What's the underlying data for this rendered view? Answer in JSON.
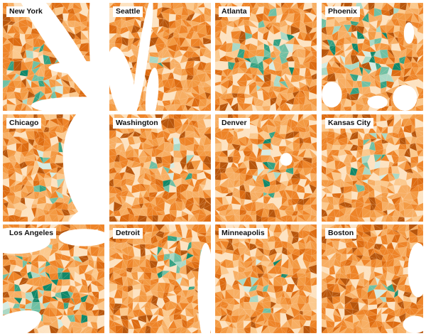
{
  "colors": {
    "background": "#ffffff",
    "water": "#ffffff",
    "orange_scale": [
      "#fde3c2",
      "#fbc98e",
      "#f7ae63",
      "#f39a43",
      "#ee8428",
      "#dd6c12",
      "#b8560c"
    ],
    "teal_scale": [
      "#d6ece3",
      "#a9d9c6",
      "#6fc0a4",
      "#34a283",
      "#10886a"
    ],
    "label_background": "#ffffff",
    "label_text": "#111111"
  },
  "maps": [
    {
      "id": "new-york",
      "title": "New York"
    },
    {
      "id": "seattle",
      "title": "Seattle"
    },
    {
      "id": "atlanta",
      "title": "Atlanta"
    },
    {
      "id": "phoenix",
      "title": "Phoenix"
    },
    {
      "id": "chicago",
      "title": "Chicago"
    },
    {
      "id": "washington",
      "title": "Washington"
    },
    {
      "id": "denver",
      "title": "Denver"
    },
    {
      "id": "kansas-city",
      "title": "Kansas City"
    },
    {
      "id": "los-angeles",
      "title": "Los Angeles"
    },
    {
      "id": "detroit",
      "title": "Detroit"
    },
    {
      "id": "minneapolis",
      "title": "Minneapolis"
    },
    {
      "id": "boston",
      "title": "Boston"
    }
  ]
}
